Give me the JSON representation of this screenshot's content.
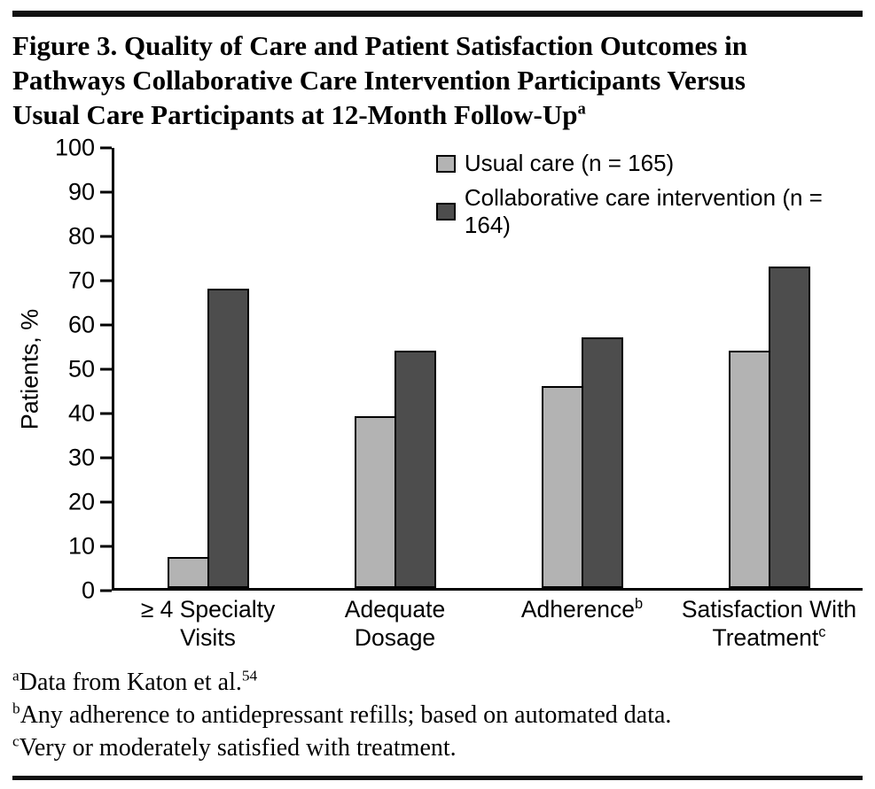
{
  "title": {
    "lines": [
      "Figure 3. Quality of Care and Patient Satisfaction Outcomes in",
      "Pathways Collaborative Care Intervention Participants Versus",
      "Usual Care Participants at 12-Month Follow-Up"
    ],
    "superscript": "a"
  },
  "footnotes": [
    {
      "marker": "a",
      "text": "Data from Katon et al.",
      "ref": "54"
    },
    {
      "marker": "b",
      "text": "Any adherence to antidepressant refills; based on automated data.",
      "ref": ""
    },
    {
      "marker": "c",
      "text": "Very or moderately satisfied with treatment.",
      "ref": ""
    }
  ],
  "chart_data": {
    "type": "bar",
    "title": "Quality of Care and Patient Satisfaction Outcomes in Pathways Collaborative Care Intervention Participants Versus Usual Care Participants at 12-Month Follow-Up",
    "xlabel": "",
    "ylabel": "Patients, %",
    "ylim": [
      0,
      100
    ],
    "ytick_step": 10,
    "grid": false,
    "legend_position": "top-right-inside",
    "categories": [
      {
        "lines": [
          "≥ 4 Specialty",
          "Visits"
        ],
        "sup": ""
      },
      {
        "lines": [
          "Adequate",
          "Dosage"
        ],
        "sup": ""
      },
      {
        "lines": [
          "Adherence"
        ],
        "sup": "b"
      },
      {
        "lines": [
          "Satisfaction With",
          "Treatment"
        ],
        "sup": "c"
      }
    ],
    "series": [
      {
        "name": "Usual care (n = 165)",
        "color": "#b3b3b3",
        "values": [
          7,
          39,
          46,
          54
        ]
      },
      {
        "name": "Collaborative care intervention (n = 164)",
        "color": "#4d4d4d",
        "values": [
          68,
          54,
          57,
          73
        ]
      }
    ]
  }
}
